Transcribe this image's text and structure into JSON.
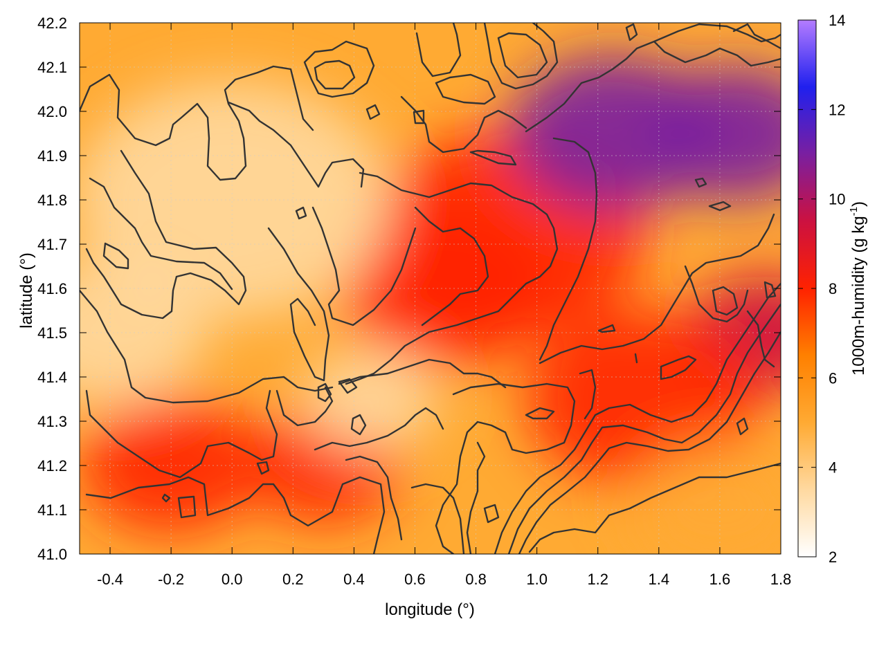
{
  "chart_data": {
    "type": "heatmap",
    "title": "",
    "xlabel": "longitude (°)",
    "ylabel": "latitude (°)",
    "xlim": [
      -0.5,
      1.8
    ],
    "ylim": [
      41.0,
      42.2
    ],
    "x_ticks": [
      "-0.4",
      "-0.2",
      "0.0",
      "0.2",
      "0.4",
      "0.6",
      "0.8",
      "1.0",
      "1.2",
      "1.4",
      "1.6",
      "1.8"
    ],
    "x_tick_values": [
      -0.4,
      -0.2,
      0.0,
      0.2,
      0.4,
      0.6,
      0.8,
      1.0,
      1.2,
      1.4,
      1.6,
      1.8
    ],
    "y_ticks": [
      "41.0",
      "41.1",
      "41.2",
      "41.3",
      "41.4",
      "41.5",
      "41.6",
      "41.7",
      "41.8",
      "41.9",
      "42.0",
      "42.1",
      "42.2"
    ],
    "y_tick_values": [
      41.0,
      41.1,
      41.2,
      41.3,
      41.4,
      41.5,
      41.6,
      41.7,
      41.8,
      41.9,
      42.0,
      42.1,
      42.2
    ],
    "grid": true,
    "colorbar": {
      "label": "1000m-humidity (g kg",
      "label_sup": "-1",
      "label_end": ")",
      "range": [
        2,
        14
      ],
      "ticks": [
        "2",
        "4",
        "6",
        "8",
        "10",
        "12",
        "14"
      ],
      "tick_values": [
        2,
        4,
        6,
        8,
        10,
        12,
        14
      ],
      "colors": [
        "#ffffff",
        "#ffd9a0",
        "#ffaa33",
        "#ff8000",
        "#ff2200",
        "#cc1140",
        "#7a1fa0",
        "#2020ee",
        "#b47cff"
      ]
    },
    "humidity_features": [
      {
        "lon": 0.9,
        "lat": 41.72,
        "value": 8.0
      },
      {
        "lon": 0.7,
        "lat": 41.6,
        "value": 7.5
      },
      {
        "lon": 1.25,
        "lat": 41.95,
        "value": 10.8
      },
      {
        "lon": 1.65,
        "lat": 41.95,
        "value": 11.5
      },
      {
        "lon": 1.75,
        "lat": 41.5,
        "value": 9.5
      },
      {
        "lon": 1.35,
        "lat": 41.35,
        "value": 8.2
      },
      {
        "lon": -0.2,
        "lat": 41.2,
        "value": 7.8
      },
      {
        "lon": 0.3,
        "lat": 41.2,
        "value": 7.4
      },
      {
        "lon": 0.0,
        "lat": 41.8,
        "value": 4.2
      },
      {
        "lon": -0.4,
        "lat": 41.5,
        "value": 3.0
      },
      {
        "lon": 0.45,
        "lat": 41.35,
        "value": 3.5
      },
      {
        "lon": 1.6,
        "lat": 41.1,
        "value": 5.5
      }
    ]
  }
}
